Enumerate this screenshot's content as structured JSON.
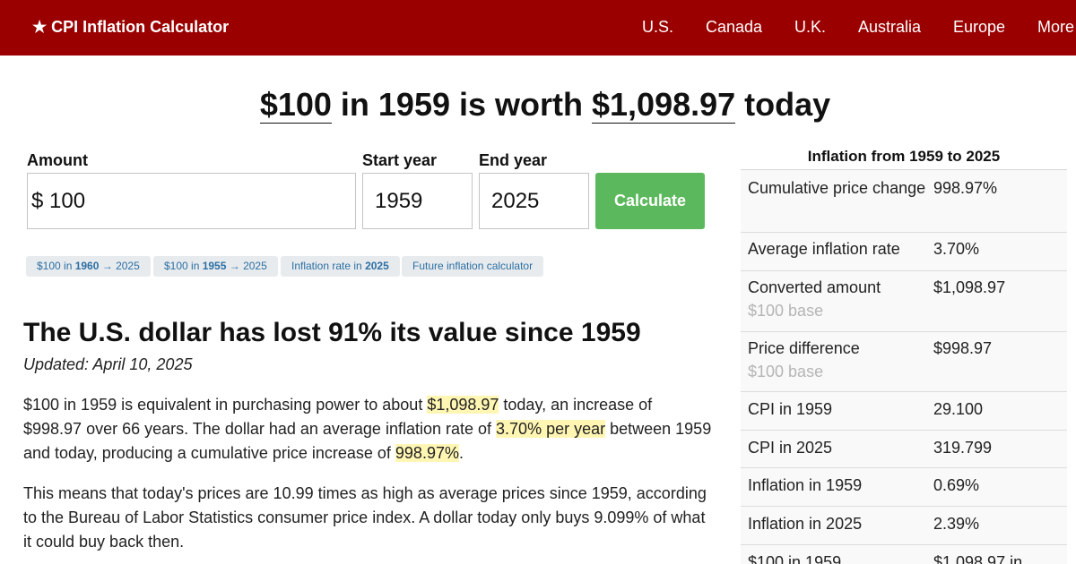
{
  "header": {
    "brand": "★ CPI Inflation Calculator",
    "nav": [
      "U.S.",
      "Canada",
      "U.K.",
      "Australia",
      "Europe",
      "More"
    ]
  },
  "headline": {
    "amount": "$100",
    "mid": " in 1959 is worth ",
    "value": "$1,098.97",
    "end": " today"
  },
  "form": {
    "amount_label": "Amount",
    "currency": "$",
    "amount_value": "100",
    "start_label": "Start year",
    "start_value": "1959",
    "end_label": "End year",
    "end_value": "2025",
    "button": "Calculate"
  },
  "chips": [
    {
      "pre": "$100 in ",
      "bold": "1960",
      "post": " → 2025"
    },
    {
      "pre": "$100 in ",
      "bold": "1955",
      "post": " → 2025"
    },
    {
      "pre": "Inflation rate in ",
      "bold": "2025",
      "post": ""
    },
    {
      "pre": "Future inflation calculator",
      "bold": "",
      "post": ""
    }
  ],
  "article": {
    "heading": "The U.S. dollar has lost 91% its value since 1959",
    "updated": "Updated: April 10, 2025",
    "p1": [
      "$100 in 1959 is equivalent in purchasing power to about ",
      "$1,098.97",
      " today, an increase of $998.97 over 66 years. The dollar had an average inflation rate of ",
      "3.70% per year",
      " between 1959 and today, producing a cumulative price increase of ",
      "998.97%",
      "."
    ],
    "p2": "This means that today's prices are 10.99 times as high as average prices since 1959, according to the Bureau of Labor Statistics consumer price index. A dollar today only buys 9.099% of what it could buy back then."
  },
  "side": {
    "title": "Inflation from 1959 to 2025",
    "rows": [
      {
        "key": "Cumulative price change",
        "sub": "",
        "value": "998.97%"
      },
      {
        "key": "Average inflation rate",
        "sub": "",
        "value": "3.70%"
      },
      {
        "key": "Converted amount",
        "sub": "$100 base",
        "value": "$1,098.97"
      },
      {
        "key": "Price difference",
        "sub": "$100 base",
        "value": "$998.97"
      },
      {
        "key": "CPI in 1959",
        "sub": "",
        "value": "29.100"
      },
      {
        "key": "CPI in 2025",
        "sub": "",
        "value": "319.799"
      },
      {
        "key": "Inflation in 1959",
        "sub": "",
        "value": "0.69%"
      },
      {
        "key": "Inflation in 2025",
        "sub": "",
        "value": "2.39%"
      },
      {
        "key": "$100 in 1959",
        "sub": "",
        "value": "$1,098.97 in"
      }
    ]
  },
  "colors": {
    "header_bg": "#9b0000",
    "button_bg": "#5cb85c",
    "highlight": "#fff6b3",
    "chip_text": "#2b6fa3"
  }
}
